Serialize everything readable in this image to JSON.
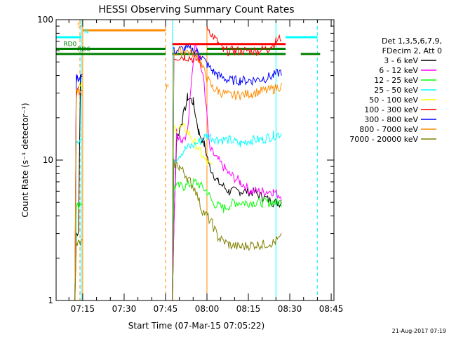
{
  "chart_data": {
    "type": "line",
    "title": "HESSI Observing Summary Count Rates",
    "xlabel": "Start Time (07-Mar-15 07:05:22)",
    "ylabel": "Count Rate (s⁻¹ detector⁻¹)",
    "ylog": true,
    "ylim": [
      1,
      100
    ],
    "xlim": [
      "07:05:22",
      "08:46:00"
    ],
    "x_ticks": [
      "07:15",
      "07:30",
      "07:45",
      "08:00",
      "08:15",
      "08:30",
      "08:45"
    ],
    "y_ticks": [
      "1",
      "10",
      "100"
    ],
    "footer": "21-Aug-2017 07:19",
    "legend_header": [
      "Det 1,3,5,6,7,9,",
      "FDecim 2, Att 0"
    ],
    "legend_placement": "right",
    "series": [
      {
        "name": "3 - 6 keV",
        "color": "#000000",
        "segments": [
          [
            [
              "07:12:10",
              1.0
            ],
            [
              "07:12:40",
              3.0
            ],
            [
              "07:13:30",
              3.2
            ],
            [
              "07:14:10",
              38
            ],
            [
              "07:14:50",
              40
            ]
          ],
          [
            [
              "07:47:30",
              1.0
            ],
            [
              "07:48:00",
              3.3
            ],
            [
              "07:49:00",
              14
            ],
            [
              "07:51:00",
              19
            ],
            [
              "07:53:00",
              28
            ],
            [
              "07:55:00",
              26
            ],
            [
              "07:57:00",
              16
            ],
            [
              "07:59:00",
              13
            ],
            [
              "08:01:00",
              9
            ],
            [
              "08:04:00",
              7
            ],
            [
              "08:08:00",
              6
            ],
            [
              "08:12:00",
              6
            ],
            [
              "08:16:00",
              6
            ],
            [
              "08:20:00",
              5.5
            ],
            [
              "08:24:00",
              5
            ],
            [
              "08:27:00",
              5
            ]
          ]
        ]
      },
      {
        "name": "6 - 12 keV",
        "color": "#ff00ff",
        "segments": [
          [
            [
              "07:47:30",
              1.0
            ],
            [
              "07:48:00",
              3.3
            ],
            [
              "07:49:00",
              16
            ],
            [
              "07:51:00",
              14
            ],
            [
              "07:53:00",
              16
            ],
            [
              "07:55:00",
              50
            ],
            [
              "07:56:00",
              70
            ],
            [
              "07:57:00",
              55
            ],
            [
              "07:59:00",
              35
            ],
            [
              "08:01:00",
              12
            ],
            [
              "08:04:00",
              10
            ],
            [
              "08:08:00",
              8
            ],
            [
              "08:12:00",
              7
            ],
            [
              "08:16:00",
              6
            ],
            [
              "08:20:00",
              6
            ],
            [
              "08:24:00",
              6
            ],
            [
              "08:27:00",
              5.5
            ]
          ]
        ]
      },
      {
        "name": "12 - 25 keV",
        "color": "#00ff00",
        "segments": [
          [
            [
              "07:12:10",
              1.0
            ],
            [
              "07:12:40",
              4.5
            ],
            [
              "07:14:00",
              5
            ],
            [
              "07:14:50",
              5
            ]
          ],
          [
            [
              "07:47:30",
              1.0
            ],
            [
              "07:48:00",
              6.5
            ],
            [
              "07:52:00",
              6.5
            ],
            [
              "07:56:00",
              7
            ],
            [
              "08:00:00",
              6
            ],
            [
              "08:02:00",
              5
            ],
            [
              "08:06:00",
              4.5
            ],
            [
              "08:10:00",
              5
            ],
            [
              "08:14:00",
              5
            ],
            [
              "08:18:00",
              5
            ],
            [
              "08:22:00",
              5
            ],
            [
              "08:27:00",
              5
            ]
          ]
        ]
      },
      {
        "name": "25 - 50 keV",
        "color": "#00ffff",
        "segments": [
          [
            [
              "07:12:10",
              1.0
            ],
            [
              "07:12:40",
              14
            ],
            [
              "07:14:50",
              14
            ]
          ],
          [
            [
              "07:47:30",
              1.0
            ],
            [
              "07:48:00",
              10
            ],
            [
              "07:52:00",
              12
            ],
            [
              "07:56:00",
              13
            ],
            [
              "08:00:00",
              15
            ],
            [
              "08:04:00",
              14
            ],
            [
              "08:08:00",
              14
            ],
            [
              "08:12:00",
              13
            ],
            [
              "08:16:00",
              14
            ],
            [
              "08:20:00",
              14
            ],
            [
              "08:24:00",
              15
            ],
            [
              "08:27:00",
              15.5
            ]
          ]
        ]
      },
      {
        "name": "50 - 100 keV",
        "color": "#ffff00",
        "segments": [
          [
            [
              "07:12:10",
              1.0
            ],
            [
              "07:12:40",
              32
            ],
            [
              "07:14:50",
              33
            ]
          ],
          [
            [
              "07:47:30",
              1.0
            ],
            [
              "07:48:00",
              17
            ],
            [
              "07:52:00",
              17
            ],
            [
              "07:56:00",
              13
            ],
            [
              "07:58:00",
              11
            ],
            [
              "08:00:00",
              9.5
            ],
            [
              "08:02:00",
              9
            ]
          ]
        ]
      },
      {
        "name": "100 - 300 keV",
        "color": "#ff0000",
        "segments": [
          [
            [
              "07:12:10",
              1.0
            ],
            [
              "07:12:40",
              30
            ],
            [
              "07:14:50",
              32
            ]
          ],
          [
            [
              "07:47:30",
              1.0
            ],
            [
              "07:48:00",
              54
            ],
            [
              "07:52:00",
              55
            ],
            [
              "07:56:00",
              52
            ],
            [
              "07:58:00",
              52
            ]
          ],
          [
            [
              "08:00:00",
              90
            ],
            [
              "08:02:00",
              78
            ],
            [
              "08:04:00",
              68
            ],
            [
              "08:06:00",
              60
            ],
            [
              "08:10:00",
              60
            ],
            [
              "08:14:00",
              60
            ],
            [
              "08:18:00",
              60
            ],
            [
              "08:22:00",
              62
            ],
            [
              "08:25:00",
              70
            ],
            [
              "08:27:00",
              75
            ]
          ]
        ]
      },
      {
        "name": "300 - 800 keV",
        "color": "#0000ff",
        "segments": [
          [
            [
              "07:12:10",
              1.0
            ],
            [
              "07:12:40",
              38
            ],
            [
              "07:14:50",
              40
            ]
          ],
          [
            [
              "07:47:30",
              1.0
            ],
            [
              "07:48:00",
              60
            ],
            [
              "07:52:00",
              62
            ],
            [
              "07:56:00",
              60
            ],
            [
              "07:58:00",
              55
            ],
            [
              "08:00:00",
              48
            ],
            [
              "08:02:00",
              43
            ],
            [
              "08:04:00",
              40
            ],
            [
              "08:08:00",
              37
            ],
            [
              "08:12:00",
              37
            ],
            [
              "08:16:00",
              37
            ],
            [
              "08:20:00",
              38
            ],
            [
              "08:24:00",
              40
            ],
            [
              "08:27:00",
              43
            ]
          ]
        ]
      },
      {
        "name": "800 - 7000 keV",
        "color": "#ff8c00",
        "segments": [
          [
            [
              "07:12:10",
              1.0
            ],
            [
              "07:12:40",
              30
            ],
            [
              "07:14:50",
              31
            ]
          ],
          [
            [
              "07:47:30",
              1.0
            ],
            [
              "07:48:00",
              58
            ],
            [
              "07:52:00",
              60
            ],
            [
              "07:56:00",
              57
            ],
            [
              "07:58:00",
              48
            ],
            [
              "08:00:00",
              38
            ],
            [
              "08:02:00",
              33
            ],
            [
              "08:04:00",
              31
            ],
            [
              "08:08:00",
              29
            ],
            [
              "08:12:00",
              29
            ],
            [
              "08:16:00",
              30
            ],
            [
              "08:20:00",
              31
            ],
            [
              "08:24:00",
              32
            ],
            [
              "08:27:00",
              34
            ]
          ]
        ]
      },
      {
        "name": "7000 - 20000 keV",
        "color": "#808000",
        "segments": [
          [
            [
              "07:12:10",
              1.0
            ],
            [
              "07:12:40",
              2.5
            ],
            [
              "07:14:50",
              2.6
            ]
          ],
          [
            [
              "07:47:30",
              1.0
            ],
            [
              "07:48:00",
              9.5
            ],
            [
              "07:50:00",
              9
            ],
            [
              "07:52:00",
              8
            ],
            [
              "07:54:00",
              7
            ],
            [
              "07:56:00",
              6
            ],
            [
              "07:58:00",
              4.5
            ],
            [
              "08:00:00",
              4
            ],
            [
              "08:02:00",
              3.5
            ],
            [
              "08:04:00",
              2.8
            ],
            [
              "08:08:00",
              2.5
            ],
            [
              "08:12:00",
              2.4
            ],
            [
              "08:16:00",
              2.5
            ],
            [
              "08:20:00",
              2.5
            ],
            [
              "08:24:00",
              2.6
            ],
            [
              "08:27:00",
              2.8
            ]
          ]
        ]
      }
    ],
    "flags": [
      {
        "label": "RD0",
        "color": "#008000",
        "label_at": "07:08:00",
        "segments": [
          [
            "07:05:22",
            "07:45:00",
            62
          ],
          [
            "08:00:00",
            "08:28:30",
            62
          ]
        ]
      },
      {
        "label": "RD6",
        "color": "#008000",
        "label_at": "07:13:00",
        "segments": [
          [
            "07:05:22",
            "07:45:00",
            57
          ],
          [
            "07:47:30",
            "08:28:30",
            57
          ],
          [
            "08:34:00",
            "08:41:00",
            57
          ]
        ]
      },
      {
        "label": "",
        "color": "#00ffff",
        "segments": [
          [
            "07:05:22",
            "07:14:30",
            75
          ],
          [
            "08:28:30",
            "08:40:00",
            75
          ]
        ]
      },
      {
        "label": "S",
        "color": "#ff8c00",
        "label_at": "07:13:00",
        "segments": [
          [
            "07:15:00",
            "07:45:00",
            84
          ]
        ]
      },
      {
        "label": "N",
        "color": "#00ffff",
        "label_at": "07:15:30",
        "segments": []
      },
      {
        "label": "F",
        "color": "#ff8c00",
        "label_at": "07:45:00",
        "segments": []
      },
      {
        "label": "",
        "color": "#ff0000",
        "segments": [
          [
            "07:47:30",
            "08:00:00",
            67
          ],
          [
            "08:00:00",
            "08:28:30",
            67
          ]
        ]
      }
    ],
    "vlines": [
      {
        "t": "07:05:22",
        "color": "#00ffff",
        "style": "solid"
      },
      {
        "t": "07:14:30",
        "color": "#00ffff",
        "style": "solid"
      },
      {
        "t": "07:14:00",
        "color": "#ff8c00",
        "style": "dashed"
      },
      {
        "t": "07:15:00",
        "color": "#ff8c00",
        "style": "solid"
      },
      {
        "t": "07:45:00",
        "color": "#ff8c00",
        "style": "dashed"
      },
      {
        "t": "07:47:30",
        "color": "#00ffff",
        "style": "solid"
      },
      {
        "t": "08:00:00",
        "color": "#ff8c00",
        "style": "solid"
      },
      {
        "t": "08:25:00",
        "color": "#00ffff",
        "style": "solid"
      },
      {
        "t": "08:40:00",
        "color": "#00ffff",
        "style": "dashed"
      }
    ]
  }
}
